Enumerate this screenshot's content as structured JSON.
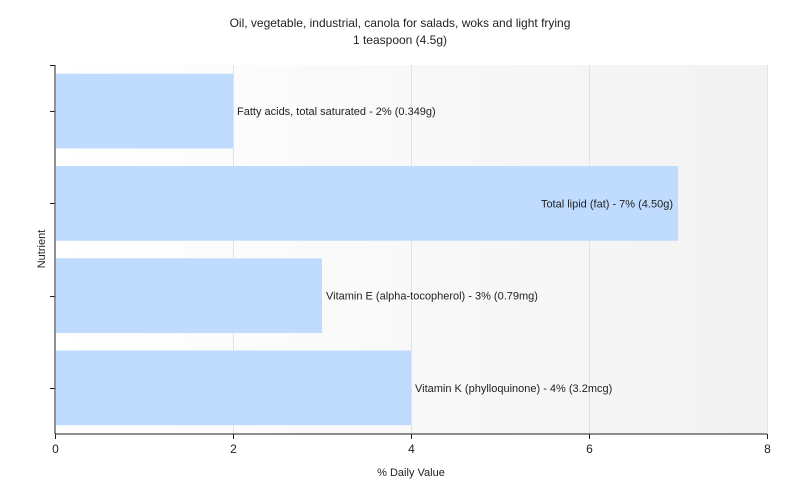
{
  "chart_data": {
    "type": "bar",
    "orientation": "horizontal",
    "title": "Oil, vegetable, industrial, canola for salads, woks and light frying",
    "subtitle": "1 teaspoon (4.5g)",
    "xlabel": "% Daily Value",
    "ylabel": "Nutrient",
    "xlim": [
      0,
      8
    ],
    "xticks": [
      "0",
      "2",
      "4",
      "6",
      "8"
    ],
    "grid": "vertical",
    "legend": "none",
    "bar_color": "#bfdcff",
    "categories": [
      "Fatty acids, total saturated",
      "Total lipid (fat)",
      "Vitamin E (alpha-tocopherol)",
      "Vitamin K (phylloquinone)"
    ],
    "values": [
      2,
      7,
      3,
      4
    ],
    "labels": [
      "Fatty acids, total saturated - 2% (0.349g)",
      "Total lipid (fat) - 7% (4.50g)",
      "Vitamin E (alpha-tocopherol) - 3% (0.79mg)",
      "Vitamin K (phylloquinone) - 4% (3.2mcg)"
    ]
  }
}
